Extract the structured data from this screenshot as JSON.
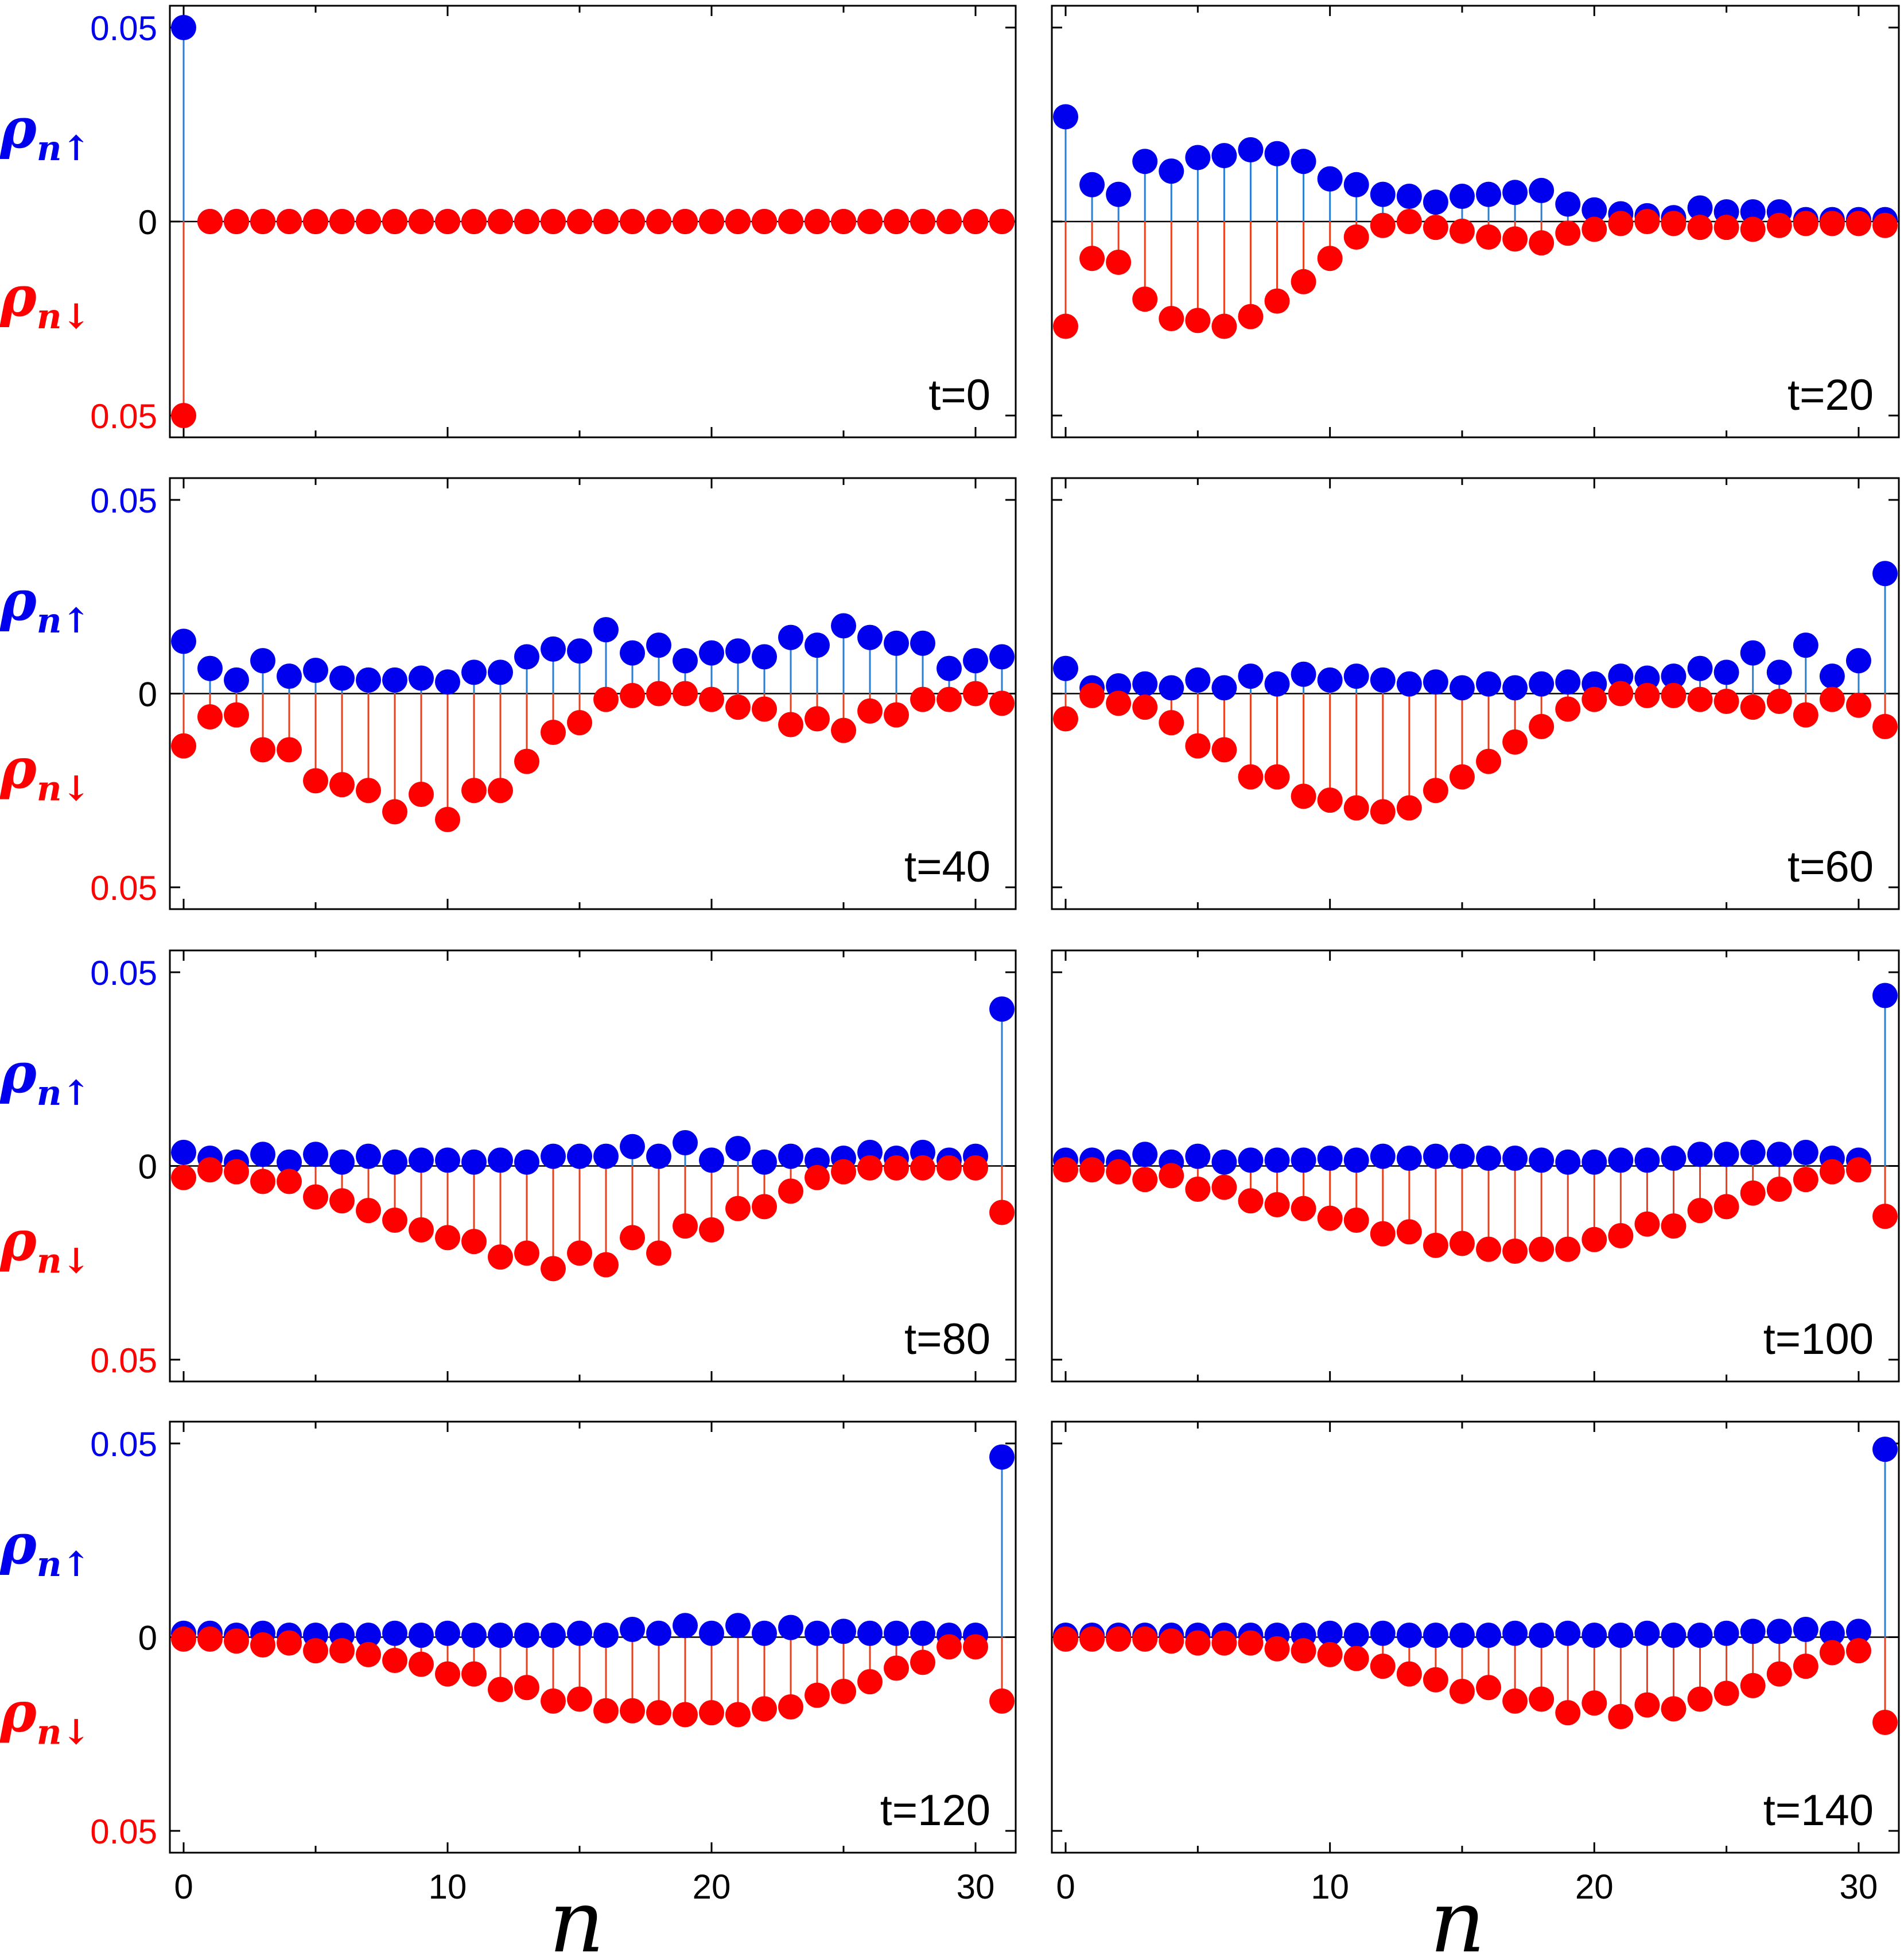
{
  "colors": {
    "up": "#0000ee",
    "down": "#ff0000",
    "up_stem": "#2b7fd0",
    "down_stem": "#e8401c",
    "axis": "#000000"
  },
  "labels": {
    "up_symbol": "ρ",
    "up_sub": "n↑",
    "down_symbol": "ρ",
    "down_sub": "n↓",
    "xlabel": "n"
  },
  "chart_data": [
    {
      "type": "stem",
      "title": "t=0",
      "ylim": [
        -0.05,
        0.05
      ],
      "xlim": [
        0,
        31
      ],
      "yticks": [
        0.05,
        0,
        0.05
      ],
      "xticks": [
        0,
        10,
        20,
        30
      ],
      "series": [
        {
          "name": "up",
          "values": [
            0.05,
            0,
            0,
            0,
            0,
            0,
            0,
            0,
            0,
            0,
            0,
            0,
            0,
            0,
            0,
            0,
            0,
            0,
            0,
            0,
            0,
            0,
            0,
            0,
            0,
            0,
            0,
            0,
            0,
            0,
            0,
            0
          ]
        },
        {
          "name": "down",
          "values": [
            0.05,
            0,
            0,
            0,
            0,
            0,
            0,
            0,
            0,
            0,
            0,
            0,
            0,
            0,
            0,
            0,
            0,
            0,
            0,
            0,
            0,
            0,
            0,
            0,
            0,
            0,
            0,
            0,
            0,
            0,
            0,
            0
          ]
        }
      ]
    },
    {
      "type": "stem",
      "title": "t=20",
      "ylim": [
        -0.05,
        0.05
      ],
      "xlim": [
        0,
        31
      ],
      "yticks": [
        0.05,
        0,
        0.05
      ],
      "xticks": [
        0,
        10,
        20,
        30
      ],
      "series": [
        {
          "name": "up",
          "values": [
            0.027,
            0.0095,
            0.007,
            0.0155,
            0.013,
            0.0165,
            0.017,
            0.0185,
            0.0175,
            0.0155,
            0.011,
            0.0095,
            0.007,
            0.0065,
            0.005,
            0.0065,
            0.007,
            0.0075,
            0.008,
            0.0045,
            0.003,
            0.002,
            0.0015,
            0.001,
            0.0035,
            0.0025,
            0.0025,
            0.0025,
            0.0005,
            0.0005,
            0.0005,
            0.0005
          ]
        },
        {
          "name": "down",
          "values": [
            0.027,
            0.0095,
            0.0105,
            0.02,
            0.025,
            0.0255,
            0.027,
            0.0245,
            0.0205,
            0.0155,
            0.0095,
            0.004,
            0.001,
            0,
            0.0015,
            0.0025,
            0.004,
            0.0045,
            0.0055,
            0.003,
            0.002,
            0.0005,
            0,
            0.0005,
            0.0015,
            0.0015,
            0.002,
            0.001,
            0.0005,
            0.0005,
            0.0005,
            0.001
          ]
        }
      ]
    },
    {
      "type": "stem",
      "title": "t=40",
      "ylim": [
        -0.05,
        0.05
      ],
      "xlim": [
        0,
        31
      ],
      "yticks": [
        0.05,
        0,
        0.05
      ],
      "xticks": [
        0,
        10,
        20,
        30
      ],
      "series": [
        {
          "name": "up",
          "values": [
            0.0135,
            0.0065,
            0.0035,
            0.0085,
            0.0045,
            0.006,
            0.004,
            0.0035,
            0.0035,
            0.004,
            0.003,
            0.0055,
            0.0055,
            0.0095,
            0.0115,
            0.011,
            0.0165,
            0.0105,
            0.0125,
            0.0085,
            0.0105,
            0.011,
            0.0095,
            0.0145,
            0.0125,
            0.0175,
            0.0145,
            0.013,
            0.013,
            0.0065,
            0.0085,
            0.0095
          ]
        },
        {
          "name": "down",
          "values": [
            0.0135,
            0.006,
            0.0055,
            0.0145,
            0.0145,
            0.0225,
            0.0235,
            0.025,
            0.0305,
            0.026,
            0.0325,
            0.025,
            0.025,
            0.0175,
            0.01,
            0.0075,
            0.0015,
            0.0005,
            0,
            0,
            0.0015,
            0.0035,
            0.004,
            0.008,
            0.0065,
            0.0095,
            0.0045,
            0.0055,
            0.0015,
            0.0015,
            0,
            0.0025
          ]
        }
      ]
    },
    {
      "type": "stem",
      "title": "t=60",
      "ylim": [
        -0.05,
        0.05
      ],
      "xlim": [
        0,
        31
      ],
      "yticks": [
        0.05,
        0,
        0.05
      ],
      "xticks": [
        0,
        10,
        20,
        30
      ],
      "series": [
        {
          "name": "up",
          "values": [
            0.0065,
            0.0015,
            0.002,
            0.0025,
            0.0015,
            0.0035,
            0.0015,
            0.0045,
            0.0025,
            0.005,
            0.0035,
            0.0045,
            0.0035,
            0.0025,
            0.003,
            0.0015,
            0.0025,
            0.0015,
            0.0025,
            0.003,
            0.0025,
            0.0045,
            0.004,
            0.0045,
            0.0065,
            0.0055,
            0.0105,
            0.0055,
            0.0125,
            0.0045,
            0.0085,
            0.031
          ]
        },
        {
          "name": "down",
          "values": [
            0.0065,
            0.0005,
            0.0025,
            0.0035,
            0.0075,
            0.0135,
            0.0145,
            0.0215,
            0.0215,
            0.0265,
            0.0275,
            0.0295,
            0.0305,
            0.0295,
            0.025,
            0.0215,
            0.0175,
            0.0125,
            0.0085,
            0.004,
            0.0015,
            0,
            0.0005,
            0.0005,
            0.0015,
            0.002,
            0.0035,
            0.002,
            0.0055,
            0.0015,
            0.003,
            0.0085
          ]
        }
      ]
    },
    {
      "type": "stem",
      "title": "t=80",
      "ylim": [
        -0.05,
        0.05
      ],
      "xlim": [
        0,
        31
      ],
      "yticks": [
        0.05,
        0,
        0.05
      ],
      "xticks": [
        0,
        10,
        20,
        30
      ],
      "series": [
        {
          "name": "up",
          "values": [
            0.0035,
            0.002,
            0.001,
            0.003,
            0.001,
            0.003,
            0.001,
            0.0025,
            0.001,
            0.0015,
            0.0015,
            0.001,
            0.0015,
            0.001,
            0.0025,
            0.0025,
            0.0025,
            0.005,
            0.0025,
            0.006,
            0.0015,
            0.0045,
            0.001,
            0.0025,
            0.0015,
            0.002,
            0.0035,
            0.002,
            0.0035,
            0.0015,
            0.0025,
            0.0405
          ]
        },
        {
          "name": "down",
          "values": [
            0.003,
            0.001,
            0.0015,
            0.004,
            0.004,
            0.008,
            0.009,
            0.0115,
            0.014,
            0.0165,
            0.0185,
            0.0195,
            0.0235,
            0.0225,
            0.0265,
            0.0225,
            0.0255,
            0.0185,
            0.0225,
            0.0155,
            0.0165,
            0.011,
            0.0105,
            0.0065,
            0.003,
            0.0015,
            0.0005,
            0.0005,
            0.0005,
            0.0005,
            0.0005,
            0.012
          ]
        }
      ]
    },
    {
      "type": "stem",
      "title": "t=100",
      "ylim": [
        -0.05,
        0.05
      ],
      "xlim": [
        0,
        31
      ],
      "yticks": [
        0.05,
        0,
        0.05
      ],
      "xticks": [
        0,
        10,
        20,
        30
      ],
      "series": [
        {
          "name": "up",
          "values": [
            0.0015,
            0.0015,
            0.001,
            0.003,
            0.001,
            0.0025,
            0.001,
            0.0015,
            0.0015,
            0.0015,
            0.002,
            0.0015,
            0.0025,
            0.002,
            0.0025,
            0.0025,
            0.002,
            0.002,
            0.0015,
            0.001,
            0.001,
            0.0015,
            0.0015,
            0.002,
            0.003,
            0.003,
            0.0035,
            0.003,
            0.0035,
            0.002,
            0.0015,
            0.044
          ]
        },
        {
          "name": "down",
          "values": [
            0.001,
            0.001,
            0.0015,
            0.0035,
            0.0025,
            0.006,
            0.0055,
            0.009,
            0.01,
            0.011,
            0.0135,
            0.014,
            0.0175,
            0.017,
            0.0205,
            0.02,
            0.0215,
            0.022,
            0.0215,
            0.0215,
            0.019,
            0.018,
            0.015,
            0.0155,
            0.0115,
            0.0105,
            0.007,
            0.006,
            0.0035,
            0.0015,
            0.001,
            0.013
          ]
        }
      ]
    },
    {
      "type": "stem",
      "title": "t=120",
      "ylim": [
        -0.05,
        0.05
      ],
      "xlim": [
        0,
        31
      ],
      "yticks": [
        0.05,
        0,
        0.05
      ],
      "xticks": [
        0,
        10,
        20,
        30
      ],
      "series": [
        {
          "name": "up",
          "values": [
            0.001,
            0.001,
            0.0005,
            0.001,
            0.0005,
            0.0005,
            0.0005,
            0.0005,
            0.001,
            0.0005,
            0.001,
            0.0005,
            0.0005,
            0.0005,
            0.0005,
            0.001,
            0.0005,
            0.002,
            0.001,
            0.003,
            0.001,
            0.003,
            0.001,
            0.0025,
            0.001,
            0.0015,
            0.001,
            0.001,
            0.001,
            0.0005,
            0.0005,
            0.0465
          ]
        },
        {
          "name": "down",
          "values": [
            0.0005,
            0.0005,
            0.001,
            0.002,
            0.0015,
            0.0035,
            0.0035,
            0.0045,
            0.006,
            0.007,
            0.0095,
            0.0095,
            0.0135,
            0.013,
            0.0165,
            0.016,
            0.019,
            0.019,
            0.0195,
            0.02,
            0.0195,
            0.02,
            0.0185,
            0.018,
            0.015,
            0.014,
            0.0115,
            0.008,
            0.0065,
            0.0025,
            0.0025,
            0.0165
          ]
        }
      ]
    },
    {
      "type": "stem",
      "title": "t=140",
      "ylim": [
        -0.05,
        0.05
      ],
      "xlim": [
        0,
        31
      ],
      "yticks": [
        0.05,
        0,
        0.05
      ],
      "xticks": [
        0,
        10,
        20,
        30
      ],
      "series": [
        {
          "name": "up",
          "values": [
            0.0005,
            0.0005,
            0.0005,
            0.0005,
            0.0005,
            0.0005,
            0.0005,
            0.0005,
            0.0005,
            0.0005,
            0.001,
            0.0005,
            0.001,
            0.0005,
            0.0005,
            0.0005,
            0.0005,
            0.001,
            0.0005,
            0.001,
            0.0005,
            0.0005,
            0.001,
            0.0005,
            0.0005,
            0.001,
            0.0015,
            0.0015,
            0.002,
            0.001,
            0.0015,
            0.0485
          ]
        },
        {
          "name": "down",
          "values": [
            0.0005,
            0.0005,
            0.0005,
            0.0005,
            0.001,
            0.0015,
            0.0015,
            0.0015,
            0.003,
            0.0035,
            0.0045,
            0.0055,
            0.0075,
            0.0095,
            0.011,
            0.014,
            0.013,
            0.0165,
            0.016,
            0.0195,
            0.017,
            0.0205,
            0.0175,
            0.0185,
            0.016,
            0.0145,
            0.0125,
            0.0095,
            0.0075,
            0.004,
            0.0035,
            0.022
          ]
        }
      ]
    }
  ]
}
